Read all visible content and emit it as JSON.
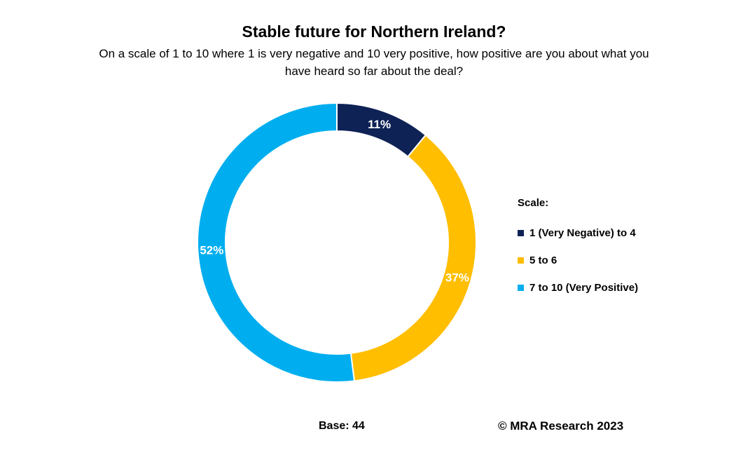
{
  "chart_data": {
    "type": "pie",
    "title": "Stable future for Northern Ireland?",
    "subtitle": "On a scale of 1 to 10 where 1 is very negative and 10 very positive, how positive are you about what you have heard so far about the deal?",
    "legend_title": "Scale:",
    "legend_position": "right",
    "donut": true,
    "categories": [
      "1 (Very Negative) to 4",
      "5 to 6",
      "7 to 10 (Very Positive)"
    ],
    "values": [
      11,
      37,
      52
    ],
    "labels": [
      "11%",
      "37%",
      "52%"
    ],
    "colors": [
      "#0e2256",
      "#ffbe00",
      "#00aeef"
    ]
  },
  "footer": {
    "base": "Base: 44",
    "credit": "© MRA Research 2023"
  }
}
